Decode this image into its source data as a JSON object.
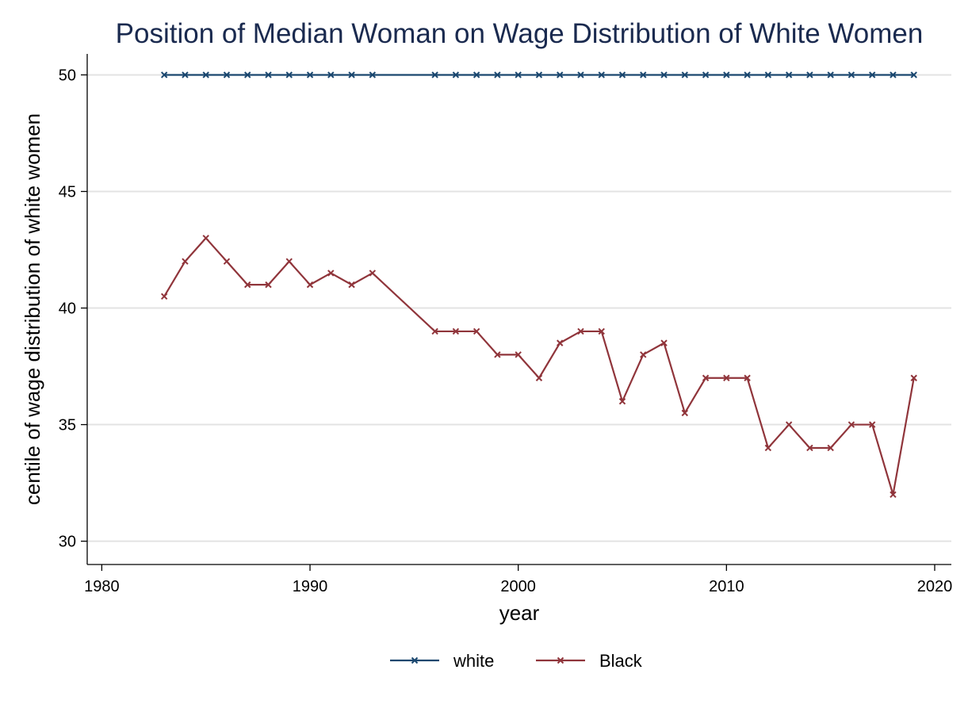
{
  "chart_data": {
    "type": "line",
    "title": "Position of Median Woman on Wage Distribution of White Women",
    "xlabel": "year",
    "ylabel": "centile of wage distribution of white women",
    "xlim": [
      1979.3,
      2020.8
    ],
    "ylim": [
      29.0,
      50.9
    ],
    "xticks": [
      1980,
      1990,
      2000,
      2010,
      2020
    ],
    "yticks": [
      30,
      35,
      40,
      45,
      50
    ],
    "grid": "horizontal",
    "legend_position": "bottom",
    "series": [
      {
        "name": "white",
        "color": "#1a476f",
        "marker": "x",
        "points": [
          {
            "x": 1983,
            "y": 50
          },
          {
            "x": 1984,
            "y": 50
          },
          {
            "x": 1985,
            "y": 50
          },
          {
            "x": 1986,
            "y": 50
          },
          {
            "x": 1987,
            "y": 50
          },
          {
            "x": 1988,
            "y": 50
          },
          {
            "x": 1989,
            "y": 50
          },
          {
            "x": 1990,
            "y": 50
          },
          {
            "x": 1991,
            "y": 50
          },
          {
            "x": 1992,
            "y": 50
          },
          {
            "x": 1993,
            "y": 50
          },
          {
            "x": 1996,
            "y": 50
          },
          {
            "x": 1997,
            "y": 50
          },
          {
            "x": 1998,
            "y": 50
          },
          {
            "x": 1999,
            "y": 50
          },
          {
            "x": 2000,
            "y": 50
          },
          {
            "x": 2001,
            "y": 50
          },
          {
            "x": 2002,
            "y": 50
          },
          {
            "x": 2003,
            "y": 50
          },
          {
            "x": 2004,
            "y": 50
          },
          {
            "x": 2005,
            "y": 50
          },
          {
            "x": 2006,
            "y": 50
          },
          {
            "x": 2007,
            "y": 50
          },
          {
            "x": 2008,
            "y": 50
          },
          {
            "x": 2009,
            "y": 50
          },
          {
            "x": 2010,
            "y": 50
          },
          {
            "x": 2011,
            "y": 50
          },
          {
            "x": 2012,
            "y": 50
          },
          {
            "x": 2013,
            "y": 50
          },
          {
            "x": 2014,
            "y": 50
          },
          {
            "x": 2015,
            "y": 50
          },
          {
            "x": 2016,
            "y": 50
          },
          {
            "x": 2017,
            "y": 50
          },
          {
            "x": 2018,
            "y": 50
          },
          {
            "x": 2019,
            "y": 50
          }
        ]
      },
      {
        "name": "Black",
        "color": "#90353b",
        "marker": "x",
        "points": [
          {
            "x": 1983,
            "y": 40.5
          },
          {
            "x": 1984,
            "y": 42
          },
          {
            "x": 1985,
            "y": 43
          },
          {
            "x": 1986,
            "y": 42
          },
          {
            "x": 1987,
            "y": 41
          },
          {
            "x": 1988,
            "y": 41
          },
          {
            "x": 1989,
            "y": 42
          },
          {
            "x": 1990,
            "y": 41
          },
          {
            "x": 1991,
            "y": 41.5
          },
          {
            "x": 1992,
            "y": 41
          },
          {
            "x": 1993,
            "y": 41.5
          },
          {
            "x": 1996,
            "y": 39
          },
          {
            "x": 1997,
            "y": 39
          },
          {
            "x": 1998,
            "y": 39
          },
          {
            "x": 1999,
            "y": 38
          },
          {
            "x": 2000,
            "y": 38
          },
          {
            "x": 2001,
            "y": 37
          },
          {
            "x": 2002,
            "y": 38.5
          },
          {
            "x": 2003,
            "y": 39
          },
          {
            "x": 2004,
            "y": 39
          },
          {
            "x": 2005,
            "y": 36
          },
          {
            "x": 2006,
            "y": 38
          },
          {
            "x": 2007,
            "y": 38.5
          },
          {
            "x": 2008,
            "y": 35.5
          },
          {
            "x": 2009,
            "y": 37
          },
          {
            "x": 2010,
            "y": 37
          },
          {
            "x": 2011,
            "y": 37
          },
          {
            "x": 2012,
            "y": 34
          },
          {
            "x": 2013,
            "y": 35
          },
          {
            "x": 2014,
            "y": 34
          },
          {
            "x": 2015,
            "y": 34
          },
          {
            "x": 2016,
            "y": 35
          },
          {
            "x": 2017,
            "y": 35
          },
          {
            "x": 2018,
            "y": 32
          },
          {
            "x": 2019,
            "y": 37
          }
        ]
      }
    ]
  }
}
